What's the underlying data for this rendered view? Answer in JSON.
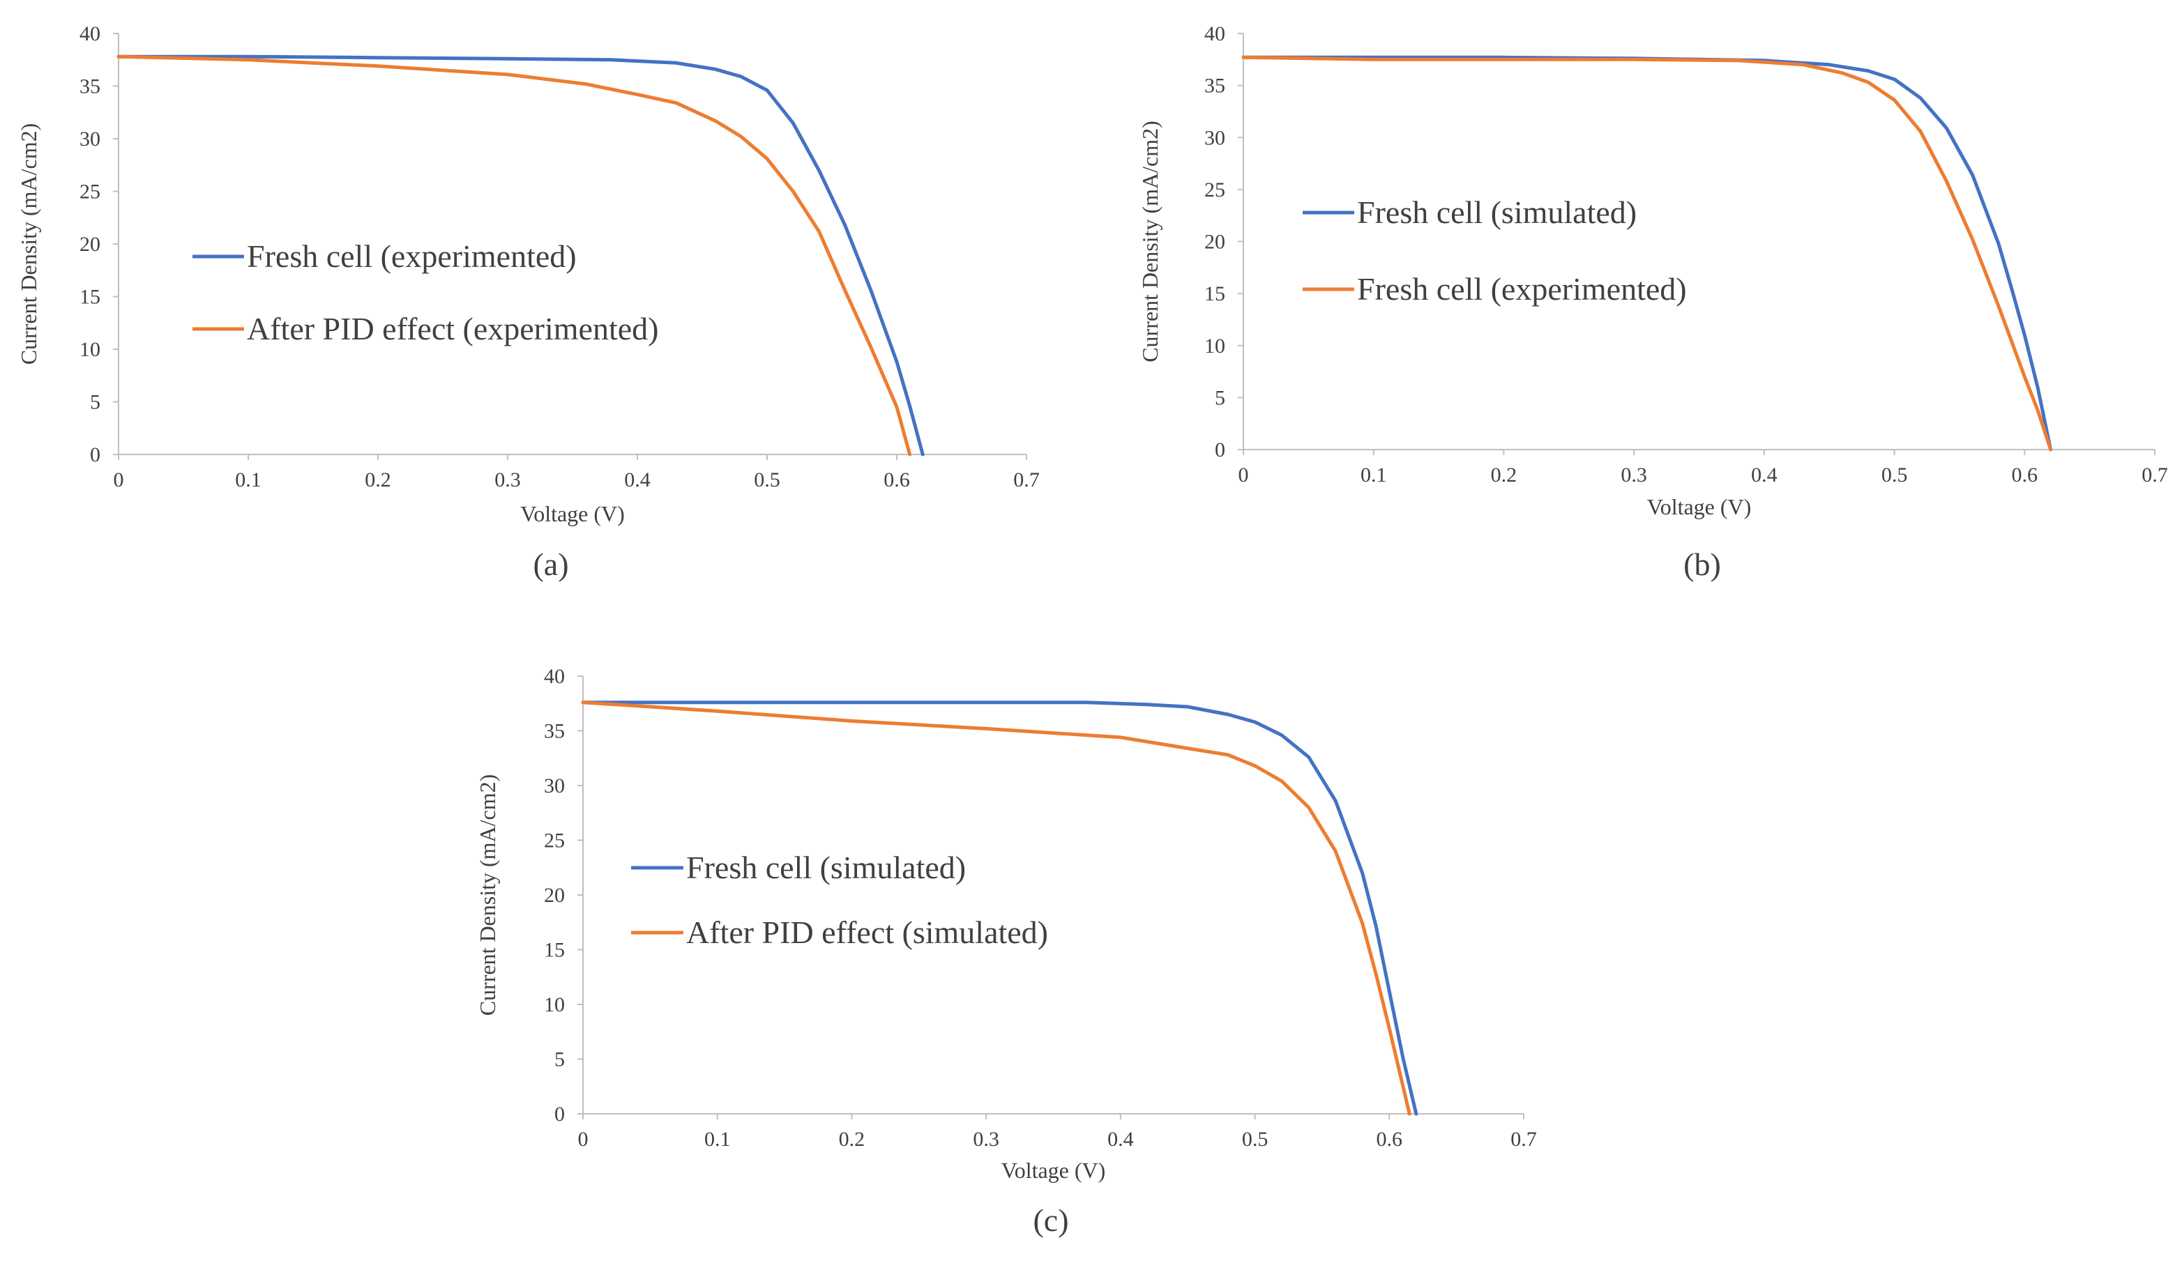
{
  "charts": [
    {
      "id": "a",
      "type": "line",
      "caption": "(a)",
      "xlabel": "Voltage (V)",
      "ylabel": "Current Density (mA/cm2)",
      "xlim": [
        0,
        0.7
      ],
      "ylim": [
        0,
        40
      ],
      "x_ticks": [
        "0",
        "0.1",
        "0.2",
        "0.3",
        "0.4",
        "0.5",
        "0.6",
        "0.7"
      ],
      "y_ticks": [
        "0",
        "5",
        "10",
        "15",
        "20",
        "25",
        "30",
        "35",
        "40"
      ],
      "series": [
        {
          "name": "Fresh cell (experimented)",
          "color": "#4472C4",
          "x": [
            0,
            0.1,
            0.2,
            0.3,
            0.38,
            0.43,
            0.46,
            0.48,
            0.5,
            0.52,
            0.54,
            0.56,
            0.58,
            0.6,
            0.61,
            0.62
          ],
          "y": [
            37.8,
            37.8,
            37.7,
            37.6,
            37.5,
            37.2,
            36.6,
            35.9,
            34.6,
            31.5,
            27.0,
            21.8,
            15.6,
            8.8,
            4.6,
            0
          ]
        },
        {
          "name": "After PID effect (experimented)",
          "color": "#ED7D31",
          "x": [
            0,
            0.1,
            0.2,
            0.3,
            0.36,
            0.4,
            0.43,
            0.46,
            0.48,
            0.5,
            0.52,
            0.54,
            0.56,
            0.58,
            0.6,
            0.61
          ],
          "y": [
            37.8,
            37.5,
            36.9,
            36.1,
            35.2,
            34.2,
            33.4,
            31.7,
            30.2,
            28.1,
            25.0,
            21.2,
            15.6,
            10.2,
            4.5,
            0
          ]
        }
      ]
    },
    {
      "id": "b",
      "type": "line",
      "caption": "(b)",
      "xlabel": "Voltage (V)",
      "ylabel": "Current Density (mA/cm2)",
      "xlim": [
        0,
        0.7
      ],
      "ylim": [
        0,
        40
      ],
      "x_ticks": [
        "0",
        "0.1",
        "0.2",
        "0.3",
        "0.4",
        "0.5",
        "0.6",
        "0.7"
      ],
      "y_ticks": [
        "0",
        "5",
        "10",
        "15",
        "20",
        "25",
        "30",
        "35",
        "40"
      ],
      "series": [
        {
          "name": "Fresh cell (simulated)",
          "color": "#4472C4",
          "x": [
            0,
            0.1,
            0.2,
            0.3,
            0.4,
            0.45,
            0.48,
            0.5,
            0.52,
            0.54,
            0.56,
            0.58,
            0.59,
            0.6,
            0.61,
            0.615,
            0.62
          ],
          "y": [
            37.7,
            37.7,
            37.7,
            37.6,
            37.4,
            37.0,
            36.4,
            35.6,
            33.8,
            30.9,
            26.4,
            19.8,
            15.5,
            11.0,
            6.0,
            3.0,
            0
          ]
        },
        {
          "name": "Fresh cell (experimented)",
          "color": "#ED7D31",
          "x": [
            0,
            0.1,
            0.2,
            0.3,
            0.38,
            0.43,
            0.46,
            0.48,
            0.5,
            0.52,
            0.54,
            0.56,
            0.58,
            0.6,
            0.61,
            0.62
          ],
          "y": [
            37.7,
            37.5,
            37.5,
            37.5,
            37.4,
            37.0,
            36.2,
            35.3,
            33.6,
            30.6,
            25.8,
            20.2,
            13.8,
            7.0,
            3.8,
            0
          ]
        }
      ]
    },
    {
      "id": "c",
      "type": "line",
      "caption": "(c)",
      "xlabel": "Voltage (V)",
      "ylabel": "Current Density (mA/cm2)",
      "xlim": [
        0,
        0.7
      ],
      "ylim": [
        0,
        40
      ],
      "x_ticks": [
        "0",
        "0.1",
        "0.2",
        "0.3",
        "0.4",
        "0.5",
        "0.6",
        "0.7"
      ],
      "y_ticks": [
        "0",
        "5",
        "10",
        "15",
        "20",
        "25",
        "30",
        "35",
        "40"
      ],
      "series": [
        {
          "name": "Fresh cell (simulated)",
          "color": "#4472C4",
          "x": [
            0,
            0.1,
            0.2,
            0.3,
            0.375,
            0.42,
            0.45,
            0.48,
            0.5,
            0.52,
            0.54,
            0.56,
            0.58,
            0.59,
            0.6,
            0.61,
            0.62
          ],
          "y": [
            37.6,
            37.6,
            37.6,
            37.6,
            37.6,
            37.4,
            37.2,
            36.5,
            35.8,
            34.6,
            32.6,
            28.6,
            22.0,
            17.2,
            11.2,
            5.2,
            0
          ]
        },
        {
          "name": "After PID effect (simulated)",
          "color": "#ED7D31",
          "x": [
            0,
            0.1,
            0.2,
            0.3,
            0.4,
            0.45,
            0.48,
            0.5,
            0.52,
            0.54,
            0.56,
            0.58,
            0.59,
            0.6,
            0.61,
            0.615
          ],
          "y": [
            37.6,
            36.8,
            35.9,
            35.2,
            34.4,
            33.4,
            32.8,
            31.8,
            30.4,
            28.0,
            24.0,
            17.4,
            12.8,
            7.8,
            2.6,
            0
          ]
        }
      ]
    }
  ]
}
